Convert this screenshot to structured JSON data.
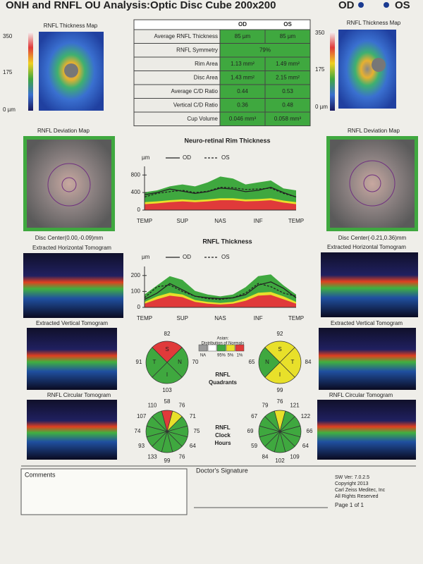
{
  "header": {
    "title": "ONH and RNFL OU Analysis:Optic Disc Cube 200x200",
    "eyes": [
      "OD",
      "OS"
    ]
  },
  "table": {
    "columns": [
      "OD",
      "OS"
    ],
    "rows": [
      [
        "Average RNFL Thickness",
        "85 µm",
        "85 µm"
      ],
      [
        "RNFL Symmetry",
        "79%"
      ],
      [
        "Rim Area",
        "1.13 mm²",
        "1.49 mm²"
      ],
      [
        "Disc Area",
        "1.43 mm²",
        "2.15 mm²"
      ],
      [
        "Average C/D Ratio",
        "0.44",
        "0.53"
      ],
      [
        "Vertical C/D Ratio",
        "0.36",
        "0.48"
      ],
      [
        "Cup Volume",
        "0.046 mm³",
        "0.058 mm³"
      ]
    ]
  },
  "thickness_map": {
    "title": "RNFL Thickness Map",
    "scale": [
      "350",
      "175",
      "0 µm"
    ]
  },
  "deviation_map": {
    "title": "RNFL Deviation Map",
    "od_center": "Disc Center(0.00,-0.09)mm",
    "os_center": "Disc Center(-0.21,0.36)mm"
  },
  "tomograms": {
    "horizontal": "Extracted Horizontal Tomogram",
    "vertical": "Extracted Vertical Tomogram",
    "circular": "RNFL Circular Tomogram"
  },
  "rim_chart": {
    "type": "line",
    "title": "Neuro-retinal Rim Thickness",
    "y_label": "µm",
    "x_labels": [
      "TEMP",
      "SUP",
      "NAS",
      "INF",
      "TEMP"
    ],
    "ylim": [
      0,
      900
    ],
    "yticks": [
      0,
      400,
      800
    ],
    "series": [
      {
        "name": "OD",
        "color": "#222222",
        "values": [
          350,
          400,
          480,
          430,
          380,
          420,
          500,
          480,
          420,
          450,
          520,
          400,
          300
        ]
      },
      {
        "name": "OS",
        "color": "#222222",
        "values": [
          300,
          380,
          420,
          450,
          400,
          430,
          520,
          510,
          470,
          480,
          500,
          380,
          300
        ]
      }
    ]
  },
  "rnfl_chart": {
    "type": "line",
    "title": "RNFL Thickness",
    "y_label": "µm",
    "x_labels": [
      "TEMP",
      "SUP",
      "NAS",
      "INF",
      "TEMP"
    ],
    "ylim": [
      0,
      230
    ],
    "yticks": [
      0,
      100,
      200
    ],
    "series": [
      {
        "name": "OD",
        "color": "#222222",
        "values": [
          50,
          90,
          150,
          110,
          70,
          60,
          55,
          60,
          80,
          140,
          160,
          120,
          60
        ]
      },
      {
        "name": "OS",
        "color": "#222222",
        "values": [
          60,
          130,
          140,
          100,
          70,
          55,
          50,
          60,
          90,
          150,
          130,
          90,
          70
        ]
      }
    ]
  },
  "normals_legend": {
    "title": [
      "Asian:",
      "Distribution of Normals"
    ],
    "labels": [
      "NA",
      "95%",
      "5%",
      "1%"
    ],
    "colors": [
      "#9a9a9a",
      "#ffffff",
      "#3fa83f",
      "#e8e02a",
      "#e03a3a"
    ]
  },
  "quadrants": {
    "label": [
      "RNFL",
      "Quadrants"
    ],
    "od": {
      "letters": [
        "S",
        "N",
        "I",
        "T"
      ],
      "values": [
        82,
        70,
        103,
        91
      ],
      "colors": [
        "#e03a3a",
        "#3fa83f",
        "#3fa83f",
        "#3fa83f"
      ]
    },
    "os": {
      "letters": [
        "S",
        "T",
        "I",
        "N"
      ],
      "values": [
        92,
        84,
        99,
        65
      ],
      "colors": [
        "#e8e02a",
        "#e8e02a",
        "#e8e02a",
        "#3fa83f"
      ]
    }
  },
  "clock_hours": {
    "label": [
      "RNFL",
      "Clock",
      "Hours"
    ],
    "od": {
      "values": [
        58,
        76,
        71,
        75,
        64,
        76,
        99,
        133,
        93,
        74,
        107,
        110
      ],
      "colors": [
        "#e03a3a",
        "#e8e02a",
        "#3fa83f",
        "#3fa83f",
        "#3fa83f",
        "#3fa83f",
        "#3fa83f",
        "#3fa83f",
        "#3fa83f",
        "#3fa83f",
        "#3fa83f",
        "#3fa83f"
      ]
    },
    "os": {
      "values": [
        76,
        121,
        122,
        66,
        64,
        109,
        102,
        84,
        59,
        69,
        67,
        79
      ],
      "colors": [
        "#e8e02a",
        "#3fa83f",
        "#3fa83f",
        "#3fa83f",
        "#3fa83f",
        "#3fa83f",
        "#3fa83f",
        "#3fa83f",
        "#3fa83f",
        "#3fa83f",
        "#3fa83f",
        "#3fa83f"
      ]
    }
  },
  "footer": {
    "comments": "Comments",
    "signature": "Doctor's Signature",
    "info": [
      "SW Ver: 7.0.2.5",
      "Copyright 2013",
      "Carl Zeiss Meditec, Inc",
      "All Rights Reserved"
    ],
    "page": "Page 1 of 1"
  }
}
